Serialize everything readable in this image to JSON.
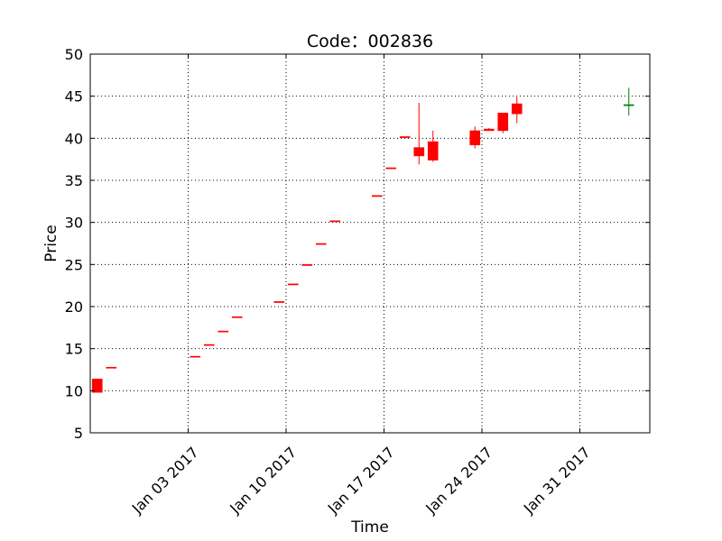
{
  "chart_data": {
    "type": "candlestick",
    "title": "Code：002836",
    "xlabel": "Time",
    "ylabel": "Price",
    "ylim": [
      5,
      50
    ],
    "yticks": [
      5,
      10,
      15,
      20,
      25,
      30,
      35,
      40,
      45,
      50
    ],
    "xlim": [
      "2016-12-27",
      "2017-02-05"
    ],
    "xticks": [
      {
        "date": "2017-01-03",
        "label": "Jan 03 2017"
      },
      {
        "date": "2017-01-10",
        "label": "Jan 10 2017"
      },
      {
        "date": "2017-01-17",
        "label": "Jan 17 2017"
      },
      {
        "date": "2017-01-24",
        "label": "Jan 24 2017"
      },
      {
        "date": "2017-01-31",
        "label": "Jan 31 2017"
      }
    ],
    "grid": true,
    "colors": {
      "up": "#ff0000",
      "down": "#008000"
    },
    "candles": [
      {
        "date": "2016-12-27",
        "open": 9.8,
        "high": 11.4,
        "low": 9.8,
        "close": 11.4
      },
      {
        "date": "2016-12-28",
        "open": 12.8,
        "high": 12.8,
        "low": 12.8,
        "close": 12.8
      },
      {
        "date": "2017-01-03",
        "open": 14.1,
        "high": 14.1,
        "low": 14.1,
        "close": 14.1
      },
      {
        "date": "2017-01-04",
        "open": 15.5,
        "high": 15.5,
        "low": 15.5,
        "close": 15.5
      },
      {
        "date": "2017-01-05",
        "open": 17.1,
        "high": 17.1,
        "low": 17.1,
        "close": 17.1
      },
      {
        "date": "2017-01-06",
        "open": 18.8,
        "high": 18.8,
        "low": 18.8,
        "close": 18.8
      },
      {
        "date": "2017-01-09",
        "open": 20.6,
        "high": 20.6,
        "low": 20.6,
        "close": 20.6
      },
      {
        "date": "2017-01-10",
        "open": 22.7,
        "high": 22.7,
        "low": 22.7,
        "close": 22.7
      },
      {
        "date": "2017-01-11",
        "open": 25.0,
        "high": 25.0,
        "low": 25.0,
        "close": 25.0
      },
      {
        "date": "2017-01-12",
        "open": 27.5,
        "high": 27.5,
        "low": 27.5,
        "close": 27.5
      },
      {
        "date": "2017-01-13",
        "open": 30.2,
        "high": 30.2,
        "low": 30.2,
        "close": 30.2
      },
      {
        "date": "2017-01-16",
        "open": 33.2,
        "high": 33.2,
        "low": 33.2,
        "close": 33.2
      },
      {
        "date": "2017-01-17",
        "open": 36.5,
        "high": 36.5,
        "low": 36.5,
        "close": 36.5
      },
      {
        "date": "2017-01-18",
        "open": 40.2,
        "high": 40.2,
        "low": 40.2,
        "close": 40.2
      },
      {
        "date": "2017-01-19",
        "open": 37.9,
        "high": 44.2,
        "low": 36.9,
        "close": 38.9
      },
      {
        "date": "2017-01-20",
        "open": 37.4,
        "high": 40.9,
        "low": 37.2,
        "close": 39.6
      },
      {
        "date": "2017-01-23",
        "open": 39.2,
        "high": 41.4,
        "low": 38.8,
        "close": 40.9
      },
      {
        "date": "2017-01-24",
        "open": 40.9,
        "high": 41.2,
        "low": 40.9,
        "close": 41.1
      },
      {
        "date": "2017-01-25",
        "open": 40.9,
        "high": 43.0,
        "low": 40.6,
        "close": 43.0
      },
      {
        "date": "2017-01-26",
        "open": 42.9,
        "high": 44.9,
        "low": 41.8,
        "close": 44.1
      },
      {
        "date": "2017-02-03",
        "open": 44.0,
        "high": 46.0,
        "low": 42.7,
        "close": 43.9
      }
    ]
  }
}
